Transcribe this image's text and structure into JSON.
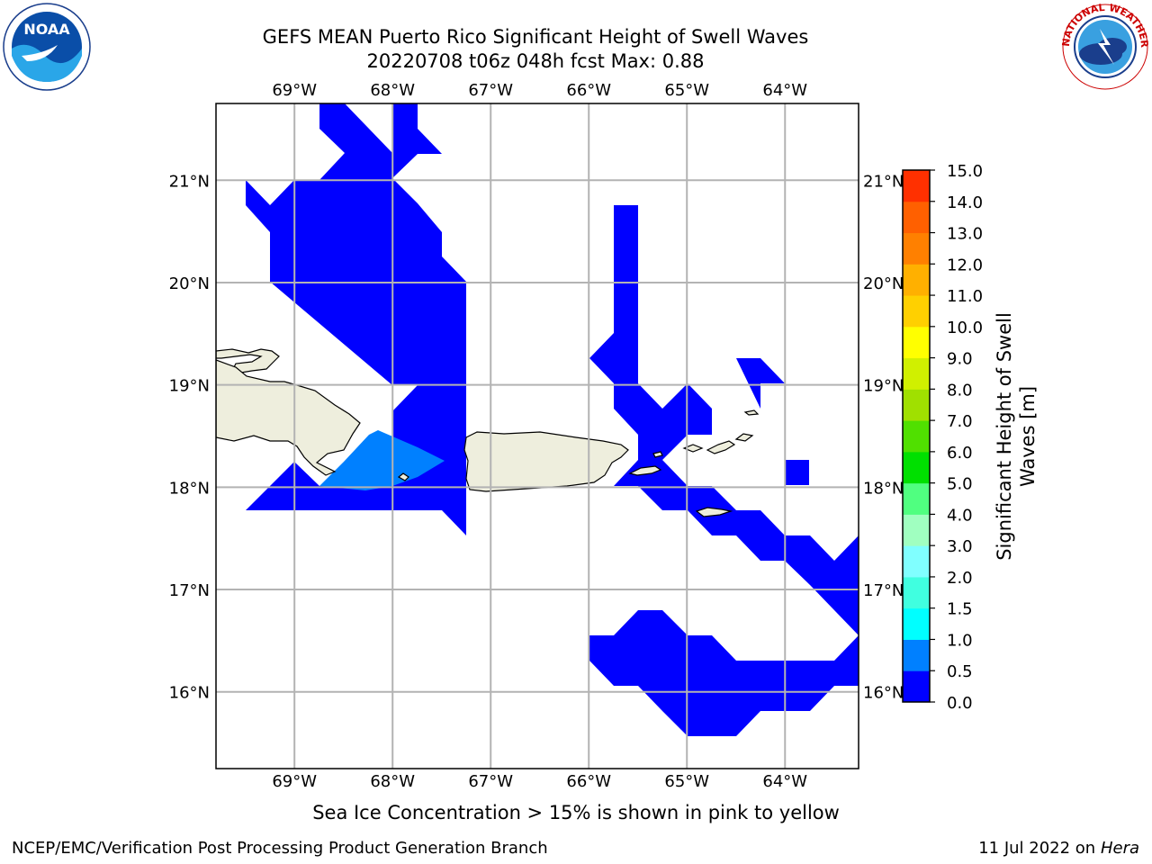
{
  "header": {
    "title_line1": "GEFS MEAN Puerto Rico Significant Height of Swell Waves",
    "title_line2": "20220708 t06z 048h fcst   Max: 0.88"
  },
  "map": {
    "lon_ticks": [
      "69°W",
      "68°W",
      "67°W",
      "66°W",
      "65°W",
      "64°W"
    ],
    "lat_ticks": [
      "21°N",
      "20°N",
      "19°N",
      "18°N",
      "17°N",
      "16°N"
    ],
    "lon_range": [
      -69.8,
      -63.25
    ],
    "lat_range": [
      15.25,
      21.75
    ],
    "land_color": "#eeeedd",
    "ocean_color": "#ffffff",
    "swell_color_low": "#0000ff",
    "swell_color_mid": "#0080ff"
  },
  "colorbar": {
    "label": "Significant Height of Swell Waves [m]",
    "label_line1": "Significant Height of Swell",
    "label_line2": "Waves [m]",
    "ticks": [
      "0.0",
      "0.5",
      "1.0",
      "1.5",
      "2.0",
      "3.0",
      "4.0",
      "5.0",
      "6.0",
      "7.0",
      "8.0",
      "9.0",
      "10.0",
      "11.0",
      "12.0",
      "13.0",
      "14.0",
      "15.0"
    ],
    "colors": [
      "#0000ff",
      "#0080ff",
      "#00ffff",
      "#40ffe0",
      "#80ffff",
      "#a0ffc0",
      "#50ff80",
      "#00e000",
      "#50e000",
      "#a0e000",
      "#d0f000",
      "#ffff00",
      "#ffd000",
      "#ffb000",
      "#ff8000",
      "#ff6000",
      "#ff3000"
    ]
  },
  "caption": "Sea Ice Concentration > 15% is shown in pink to yellow",
  "footer": {
    "left": "NCEP/EMC/Verification Post Processing Product Generation Branch",
    "right_date": "11 Jul 2022 on ",
    "right_host": "Hera"
  },
  "logos": {
    "noaa_text": "NOAA",
    "nws_text": "NATIONAL WEATHER SERVICE"
  }
}
